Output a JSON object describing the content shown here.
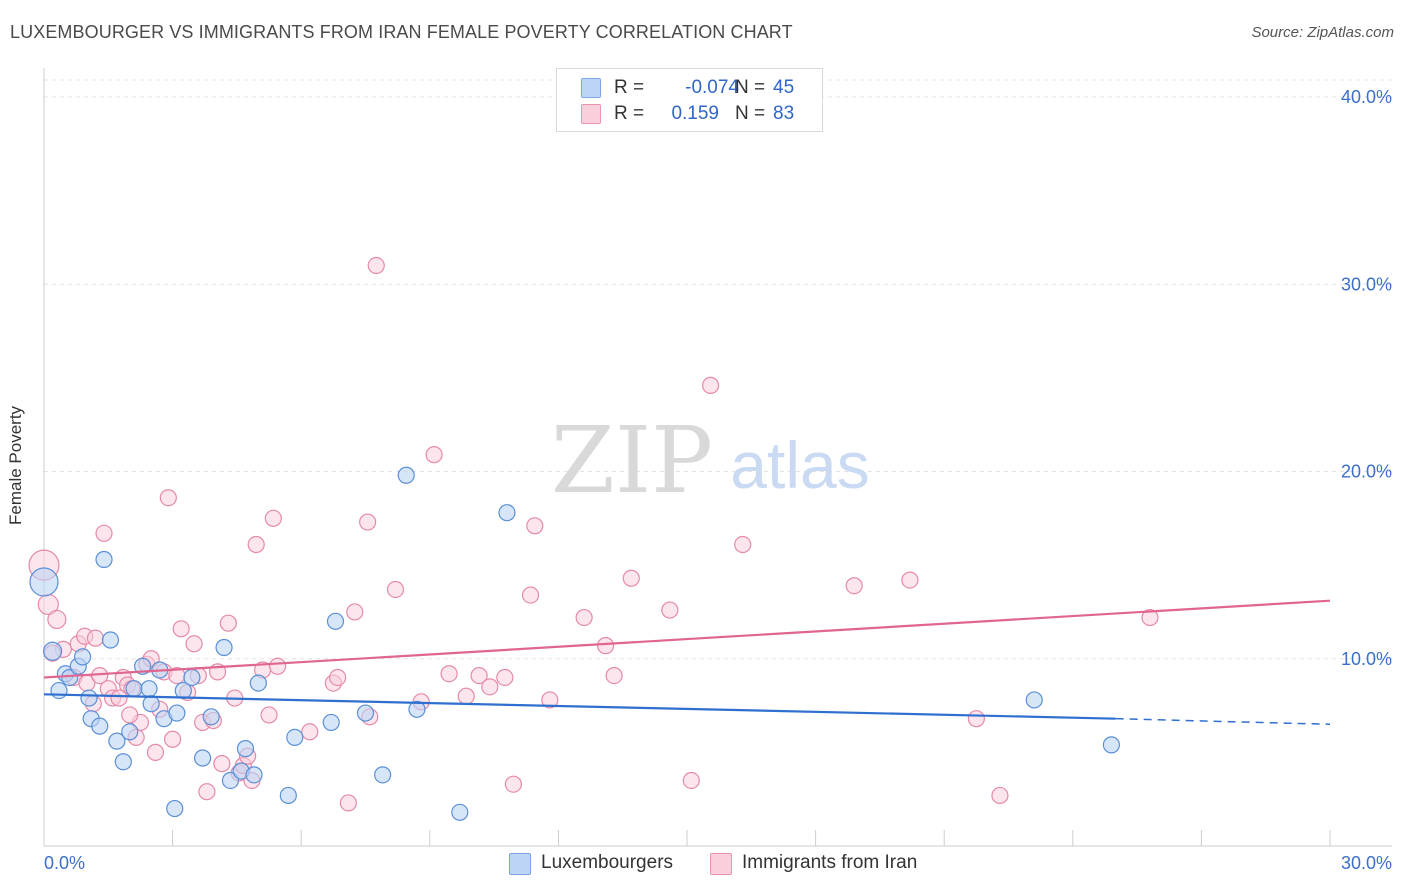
{
  "title": "LUXEMBOURGER VS IMMIGRANTS FROM IRAN FEMALE POVERTY CORRELATION CHART",
  "source": "Source: ZipAtlas.com",
  "watermark": {
    "zip": "ZIP",
    "atlas": "atlas"
  },
  "legend": {
    "r_label": "R =",
    "n_label": "N =",
    "rows": [
      {
        "r": "-0.074",
        "n": "45"
      },
      {
        "r": "0.159",
        "n": "83"
      }
    ]
  },
  "bottom_legend": {
    "series1": "Luxembourgers",
    "series2": "Immigrants from Iran"
  },
  "colors": {
    "blue_fill": "#bcd4f5",
    "blue_stroke": "#5b8fd6",
    "blue_line": "#2f6fd0",
    "pink_fill": "#f9cfdc",
    "pink_stroke": "#e58aa9",
    "pink_line": "#e0668f",
    "axis_text": "#3c6fc8",
    "grid": "#e3e3e3"
  },
  "chart_data": {
    "type": "scatter",
    "title": "LUXEMBOURGER VS IMMIGRANTS FROM IRAN FEMALE POVERTY CORRELATION CHART",
    "xlabel": "",
    "ylabel": "Female Poverty",
    "xlim": [
      0,
      30
    ],
    "ylim": [
      0,
      40
    ],
    "x_tick_labels": [
      "0.0%",
      "30.0%"
    ],
    "y_ticks": [
      10,
      20,
      30,
      40
    ],
    "y_tick_labels": [
      "10.0%",
      "20.0%",
      "30.0%",
      "40.0%"
    ],
    "grid": true,
    "series": [
      {
        "name": "Luxembourgers",
        "r": -0.074,
        "n": 45,
        "trend": {
          "x0": 0,
          "y0": 8.1,
          "x1": 25.0,
          "y1": 6.8,
          "dash_to_x": 30,
          "dash_y": 6.5
        },
        "points": [
          [
            0.0,
            14.1,
            14
          ],
          [
            0.2,
            10.4,
            9
          ],
          [
            0.35,
            8.3,
            8
          ],
          [
            0.5,
            9.2,
            8
          ],
          [
            0.6,
            9.0,
            8
          ],
          [
            0.8,
            9.6,
            8
          ],
          [
            0.9,
            10.1,
            8
          ],
          [
            1.05,
            7.9,
            8
          ],
          [
            1.1,
            6.8,
            8
          ],
          [
            1.3,
            6.4,
            8
          ],
          [
            1.4,
            15.3,
            8
          ],
          [
            1.55,
            11.0,
            8
          ],
          [
            1.7,
            5.6,
            8
          ],
          [
            1.85,
            4.5,
            8
          ],
          [
            2.0,
            6.1,
            8
          ],
          [
            2.1,
            8.4,
            8
          ],
          [
            2.3,
            9.6,
            8
          ],
          [
            2.45,
            8.4,
            8
          ],
          [
            2.5,
            7.6,
            8
          ],
          [
            2.7,
            9.4,
            8
          ],
          [
            2.8,
            6.8,
            8
          ],
          [
            3.05,
            2.0,
            8
          ],
          [
            3.1,
            7.1,
            8
          ],
          [
            3.25,
            8.3,
            8
          ],
          [
            3.45,
            9.0,
            8
          ],
          [
            3.7,
            4.7,
            8
          ],
          [
            3.9,
            6.9,
            8
          ],
          [
            4.2,
            10.6,
            8
          ],
          [
            4.35,
            3.5,
            8
          ],
          [
            4.6,
            4.0,
            8
          ],
          [
            4.7,
            5.2,
            8
          ],
          [
            4.9,
            3.8,
            8
          ],
          [
            5.0,
            8.7,
            8
          ],
          [
            5.7,
            2.7,
            8
          ],
          [
            5.85,
            5.8,
            8
          ],
          [
            6.7,
            6.6,
            8
          ],
          [
            6.8,
            12.0,
            8
          ],
          [
            7.5,
            7.1,
            8
          ],
          [
            7.9,
            3.8,
            8
          ],
          [
            8.45,
            19.8,
            8
          ],
          [
            8.7,
            7.3,
            8
          ],
          [
            9.7,
            1.8,
            8
          ],
          [
            10.8,
            17.8,
            8
          ],
          [
            23.1,
            7.8,
            8
          ],
          [
            24.9,
            5.4,
            8
          ]
        ]
      },
      {
        "name": "Immigrants from Iran",
        "r": 0.159,
        "n": 83,
        "trend": {
          "x0": 0,
          "y0": 9.0,
          "x1": 30,
          "y1": 13.1
        },
        "points": [
          [
            0.0,
            15.0,
            15
          ],
          [
            0.1,
            12.9,
            10
          ],
          [
            0.3,
            12.1,
            9
          ],
          [
            0.45,
            10.5,
            8
          ],
          [
            0.7,
            9.0,
            8
          ],
          [
            0.8,
            10.8,
            8
          ],
          [
            0.95,
            11.2,
            8
          ],
          [
            1.0,
            8.7,
            8
          ],
          [
            1.15,
            7.6,
            8
          ],
          [
            1.3,
            9.1,
            8
          ],
          [
            1.4,
            16.7,
            8
          ],
          [
            1.5,
            8.4,
            8
          ],
          [
            1.6,
            7.9,
            8
          ],
          [
            1.75,
            7.9,
            8
          ],
          [
            1.85,
            9.0,
            8
          ],
          [
            1.95,
            8.6,
            8
          ],
          [
            2.05,
            8.4,
            8
          ],
          [
            2.15,
            5.8,
            8
          ],
          [
            2.25,
            6.6,
            8
          ],
          [
            2.4,
            9.7,
            8
          ],
          [
            2.5,
            10.0,
            8
          ],
          [
            2.6,
            5.0,
            8
          ],
          [
            2.7,
            7.3,
            8
          ],
          [
            2.8,
            9.3,
            8
          ],
          [
            2.9,
            18.6,
            8
          ],
          [
            3.0,
            5.7,
            8
          ],
          [
            3.1,
            9.1,
            8
          ],
          [
            3.2,
            11.6,
            8
          ],
          [
            3.35,
            8.2,
            8
          ],
          [
            3.5,
            10.8,
            8
          ],
          [
            3.6,
            9.1,
            8
          ],
          [
            3.7,
            6.6,
            8
          ],
          [
            3.8,
            2.9,
            8
          ],
          [
            3.95,
            6.7,
            8
          ],
          [
            4.05,
            9.3,
            8
          ],
          [
            4.15,
            4.4,
            8
          ],
          [
            4.3,
            11.9,
            8
          ],
          [
            4.45,
            7.9,
            8
          ],
          [
            4.55,
            3.9,
            8
          ],
          [
            4.65,
            4.3,
            8
          ],
          [
            4.75,
            4.8,
            8
          ],
          [
            4.85,
            3.5,
            8
          ],
          [
            4.95,
            16.1,
            8
          ],
          [
            5.1,
            9.4,
            8
          ],
          [
            5.25,
            7.0,
            8
          ],
          [
            5.35,
            17.5,
            8
          ],
          [
            5.45,
            9.6,
            8
          ],
          [
            6.2,
            6.1,
            8
          ],
          [
            6.75,
            8.7,
            8
          ],
          [
            6.85,
            9.0,
            8
          ],
          [
            7.1,
            2.3,
            8
          ],
          [
            7.25,
            12.5,
            8
          ],
          [
            7.55,
            17.3,
            8
          ],
          [
            7.6,
            6.9,
            8
          ],
          [
            7.75,
            31.0,
            8
          ],
          [
            8.2,
            13.7,
            8
          ],
          [
            8.8,
            7.7,
            8
          ],
          [
            9.1,
            20.9,
            8
          ],
          [
            9.45,
            9.2,
            8
          ],
          [
            9.85,
            8.0,
            8
          ],
          [
            10.15,
            9.1,
            8
          ],
          [
            10.4,
            8.5,
            8
          ],
          [
            10.75,
            9.0,
            8
          ],
          [
            10.95,
            3.3,
            8
          ],
          [
            11.35,
            13.4,
            8
          ],
          [
            11.45,
            17.1,
            8
          ],
          [
            11.8,
            7.8,
            8
          ],
          [
            12.6,
            12.2,
            8
          ],
          [
            13.1,
            10.7,
            8
          ],
          [
            13.3,
            9.1,
            8
          ],
          [
            13.7,
            14.3,
            8
          ],
          [
            14.6,
            12.6,
            8
          ],
          [
            15.1,
            3.5,
            8
          ],
          [
            15.55,
            24.6,
            8
          ],
          [
            16.3,
            16.1,
            8
          ],
          [
            18.9,
            13.9,
            8
          ],
          [
            20.2,
            14.2,
            8
          ],
          [
            21.75,
            6.8,
            8
          ],
          [
            22.3,
            2.7,
            8
          ],
          [
            25.8,
            12.2,
            8
          ],
          [
            0.2,
            10.3,
            8
          ],
          [
            1.2,
            11.1,
            8
          ],
          [
            2.0,
            7.0,
            8
          ]
        ]
      }
    ]
  }
}
